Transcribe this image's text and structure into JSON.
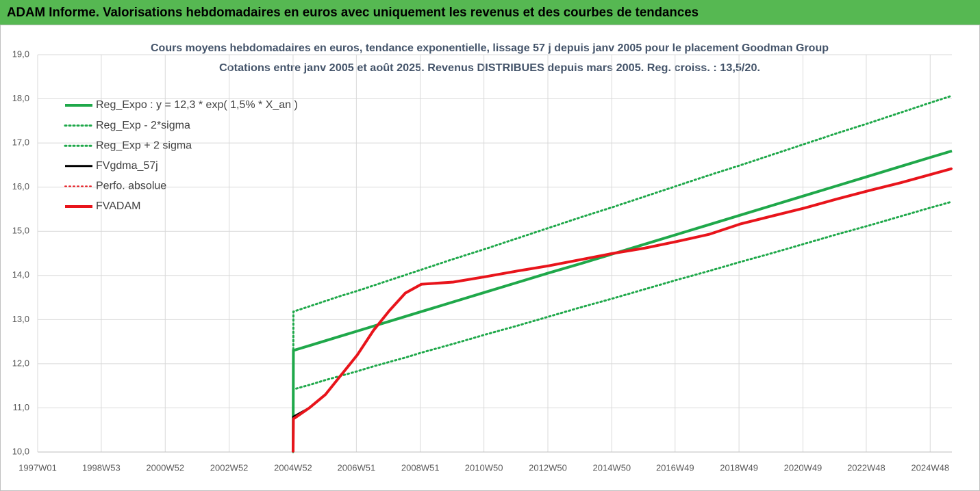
{
  "header": {
    "title": "ADAM Informe. Valorisations hebdomadaires en euros avec uniquement les revenus et des courbes de tendances"
  },
  "chart_data": {
    "type": "line",
    "title": "Cours moyens hebdomadaires en euros, tendance exponentielle, lissage 57 j depuis janv 2005  pour le placement Goodman Group",
    "subtitle": "Cotations entre janv 2005 et août 2025. Revenus DISTRIBUES depuis mars 2005. Reg. croiss. : 13,5/20.",
    "x": [
      2004.99,
      2005.0,
      2005.5,
      2006,
      2006.5,
      2007,
      2007.5,
      2008,
      2008.5,
      2009,
      2010,
      2011,
      2012,
      2013,
      2014,
      2015,
      2016,
      2017,
      2018,
      2019,
      2020,
      2021,
      2022,
      2023,
      2024,
      2025,
      2025.6
    ],
    "xlim": [
      1997.0,
      2025.6
    ],
    "xticks": [
      {
        "value": 1997.0,
        "label": "1997W01"
      },
      {
        "value": 1998.99,
        "label": "1998W53"
      },
      {
        "value": 2000.99,
        "label": "2000W52"
      },
      {
        "value": 2002.99,
        "label": "2002W52"
      },
      {
        "value": 2004.99,
        "label": "2004W52"
      },
      {
        "value": 2006.97,
        "label": "2006W51"
      },
      {
        "value": 2008.97,
        "label": "2008W51"
      },
      {
        "value": 2010.96,
        "label": "2010W50"
      },
      {
        "value": 2012.96,
        "label": "2012W50"
      },
      {
        "value": 2014.96,
        "label": "2014W50"
      },
      {
        "value": 2016.94,
        "label": "2016W49"
      },
      {
        "value": 2018.94,
        "label": "2018W49"
      },
      {
        "value": 2020.94,
        "label": "2020W49"
      },
      {
        "value": 2022.92,
        "label": "2022W48"
      },
      {
        "value": 2024.92,
        "label": "2024W48"
      }
    ],
    "ylim": [
      10,
      19
    ],
    "yticks": [
      {
        "value": 10,
        "label": "10,0"
      },
      {
        "value": 11,
        "label": "11,0"
      },
      {
        "value": 12,
        "label": "12,0"
      },
      {
        "value": 13,
        "label": "13,0"
      },
      {
        "value": 14,
        "label": "14,0"
      },
      {
        "value": 15,
        "label": "15,0"
      },
      {
        "value": 16,
        "label": "16,0"
      },
      {
        "value": 17,
        "label": "17,0"
      },
      {
        "value": 18,
        "label": "18,0"
      },
      {
        "value": 19,
        "label": "19,0"
      }
    ],
    "grid": true,
    "legend": "upper left",
    "series": [
      {
        "name": "Reg_Expo : y = 12,3 * exp( 1,5% *  X_an )",
        "color": "#1fa84a",
        "style": "solid",
        "width": 4,
        "values": [
          10.0,
          12.3,
          12.41,
          12.52,
          12.63,
          12.74,
          12.85,
          12.96,
          13.07,
          13.18,
          13.4,
          13.62,
          13.84,
          14.06,
          14.27,
          14.49,
          14.71,
          14.93,
          15.15,
          15.37,
          15.59,
          15.81,
          16.03,
          16.25,
          16.47,
          16.69,
          16.82
        ]
      },
      {
        "name": "Reg_Exp - 2*sigma",
        "color": "#1fa84a",
        "style": "dotted",
        "width": 3,
        "values": [
          10.0,
          11.42,
          11.52,
          11.63,
          11.73,
          11.83,
          11.94,
          12.04,
          12.14,
          12.25,
          12.45,
          12.66,
          12.86,
          13.07,
          13.28,
          13.48,
          13.69,
          13.9,
          14.1,
          14.31,
          14.51,
          14.72,
          14.93,
          15.13,
          15.34,
          15.55,
          15.67
        ]
      },
      {
        "name": "Reg_Exp + 2 sigma",
        "color": "#1fa84a",
        "style": "dotted",
        "width": 3,
        "values": [
          10.0,
          13.18,
          13.3,
          13.42,
          13.54,
          13.65,
          13.77,
          13.89,
          14.01,
          14.13,
          14.37,
          14.6,
          14.84,
          15.08,
          15.32,
          15.55,
          15.79,
          16.03,
          16.27,
          16.5,
          16.74,
          16.98,
          17.22,
          17.45,
          17.69,
          17.93,
          18.07
        ]
      },
      {
        "name": "FVgdma_57j",
        "color": "#000000",
        "style": "solid",
        "width": 3,
        "values": [
          10.0,
          10.8,
          11.0,
          11.3,
          11.75,
          12.2,
          12.75,
          13.2,
          13.6,
          13.8,
          13.85,
          13.97,
          14.1,
          14.22,
          14.36,
          14.5,
          14.62,
          14.77,
          14.93,
          15.17,
          15.35,
          15.53,
          15.73,
          15.92,
          16.1,
          16.3,
          16.42
        ]
      },
      {
        "name": "Perfo. absolue",
        "color": "#e8141b",
        "style": "dotted",
        "width": 2,
        "values": [
          10.0,
          10.75,
          11.0,
          11.3,
          11.75,
          12.2,
          12.75,
          13.2,
          13.6,
          13.8,
          13.85,
          13.97,
          14.1,
          14.22,
          14.36,
          14.5,
          14.62,
          14.77,
          14.93,
          15.17,
          15.35,
          15.53,
          15.73,
          15.92,
          16.1,
          16.3,
          16.42
        ]
      },
      {
        "name": "FVADAM",
        "color": "#e8141b",
        "style": "solid",
        "width": 4,
        "values": [
          10.0,
          10.75,
          11.0,
          11.3,
          11.75,
          12.2,
          12.75,
          13.2,
          13.6,
          13.8,
          13.85,
          13.97,
          14.1,
          14.22,
          14.36,
          14.5,
          14.62,
          14.77,
          14.93,
          15.17,
          15.35,
          15.53,
          15.73,
          15.92,
          16.1,
          16.3,
          16.42
        ]
      }
    ]
  }
}
